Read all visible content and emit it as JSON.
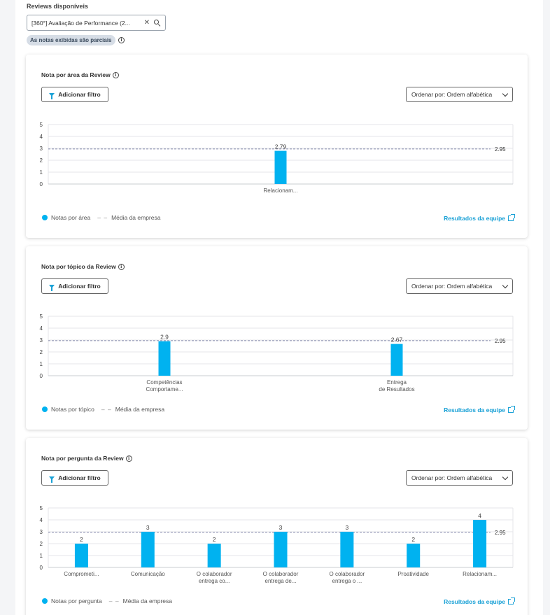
{
  "reviews": {
    "label": "Reviews disponíveis",
    "selected": "[360°] Avaliação de Performance (2...",
    "clear_icon": "close-icon",
    "search_icon": "search-icon",
    "partial_badge": "As notas exibidas são parciais"
  },
  "common": {
    "filter_label": "Adicionar filtro",
    "sort_label": "Ordenar por: Ordem alfabética",
    "company_avg_label": "Média da empresa",
    "team_link": "Resultados da equipe",
    "bar_color": "#00b2f0",
    "avg_line_color": "#8a8fb0",
    "link_color": "#1aa1d6"
  },
  "cards": [
    {
      "title": "Nota por área da Review",
      "legend_label": "Notas por área",
      "chart_data": {
        "type": "bar",
        "categories": [
          [
            "Relacionam..."
          ]
        ],
        "values": [
          2.79
        ],
        "value_labels": [
          "2.79"
        ],
        "ylim": [
          0,
          5
        ],
        "yticks": [
          "0",
          "1",
          "2",
          "3",
          "4",
          "5"
        ],
        "reference_line": {
          "value": 2.95,
          "label": "2.95"
        },
        "legend": "bottom-left"
      }
    },
    {
      "title": "Nota por tópico da Review",
      "legend_label": "Notas por tópico",
      "chart_data": {
        "type": "bar",
        "categories": [
          [
            "Competências",
            "Comportame..."
          ],
          [
            "Entrega",
            "de Resultados"
          ]
        ],
        "values": [
          2.9,
          2.67
        ],
        "value_labels": [
          "2.9",
          "2.67"
        ],
        "ylim": [
          0,
          5
        ],
        "yticks": [
          "0",
          "1",
          "2",
          "3",
          "4",
          "5"
        ],
        "reference_line": {
          "value": 2.95,
          "label": "2.95"
        },
        "legend": "bottom-left"
      }
    },
    {
      "title": "Nota por pergunta da Review",
      "legend_label": "Notas por pergunta",
      "chart_data": {
        "type": "bar",
        "categories": [
          [
            "Comprometi..."
          ],
          [
            "Comunicação"
          ],
          [
            "O colaborador",
            "entrega co..."
          ],
          [
            "O colaborador",
            "entrega de..."
          ],
          [
            "O colaborador",
            "entrega o ..."
          ],
          [
            "Proatividade"
          ],
          [
            "Relacionam..."
          ]
        ],
        "values": [
          2,
          3,
          2,
          3,
          3,
          2,
          4
        ],
        "value_labels": [
          "2",
          "3",
          "2",
          "3",
          "3",
          "2",
          "4"
        ],
        "ylim": [
          0,
          5
        ],
        "yticks": [
          "0",
          "1",
          "2",
          "3",
          "4",
          "5"
        ],
        "reference_line": {
          "value": 2.95,
          "label": "2.95"
        },
        "legend": "bottom-left"
      }
    }
  ]
}
